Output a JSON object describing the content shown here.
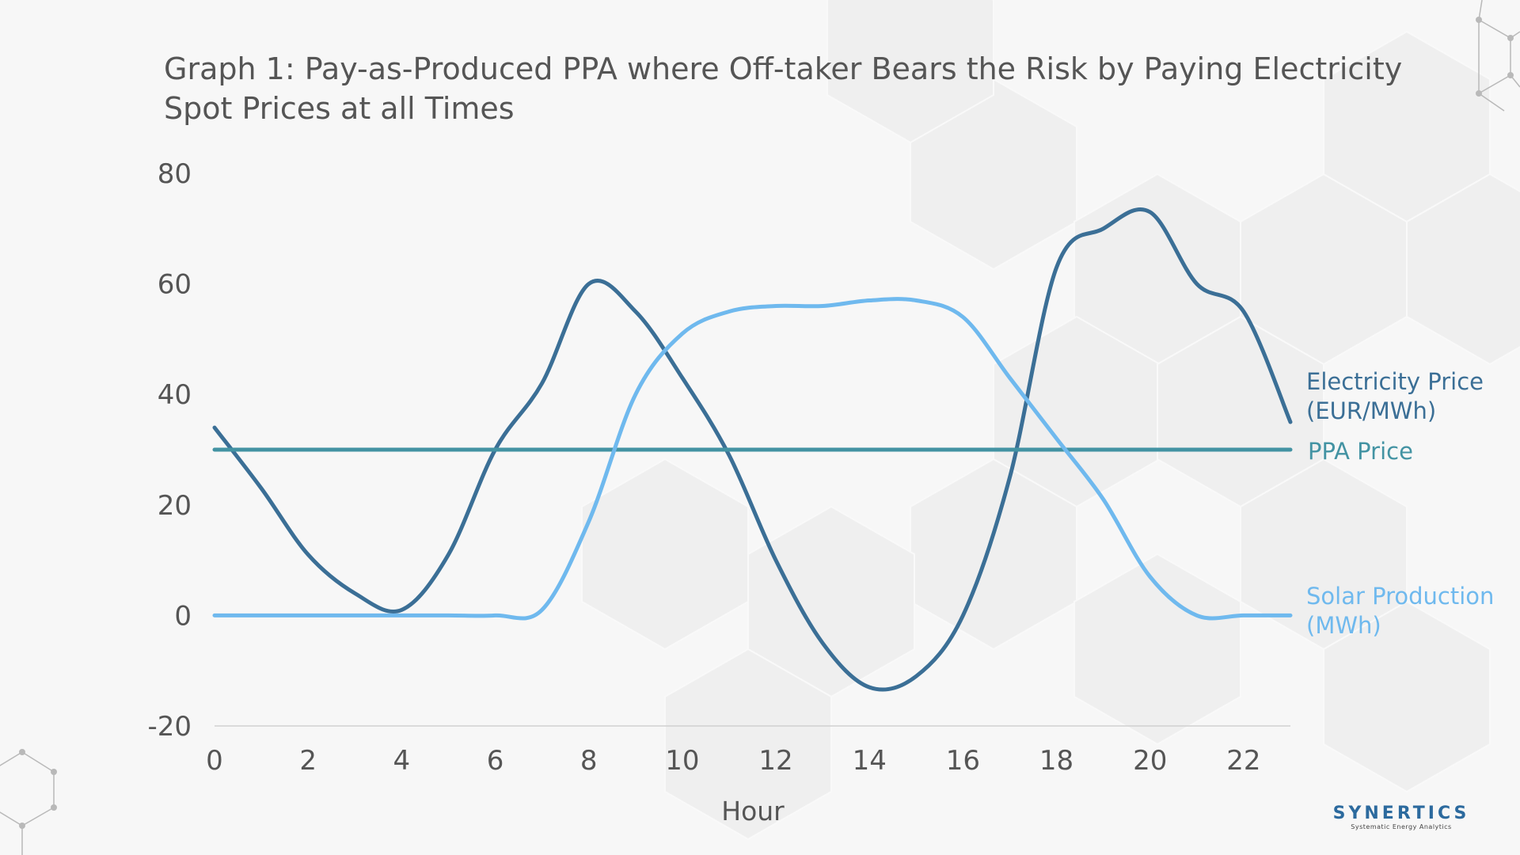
{
  "title": {
    "line1": "Graph 1: Pay-as-Produced PPA where Off-taker Bears the Risk by Paying Electricity",
    "line2": "Spot Prices at all Times"
  },
  "logo": {
    "name": "SYNERTICS",
    "tagline": "Systematic Energy Analytics"
  },
  "colors": {
    "electricity": "#3b6f96",
    "ppa": "#4393a3",
    "solar": "#6fb9ee",
    "axis_text": "#555555"
  },
  "chart_data": {
    "type": "line",
    "title": "Graph 1: Pay-as-Produced PPA where Off-taker Bears the Risk by Paying Electricity Spot Prices at all Times",
    "xlabel": "Hour",
    "ylabel": "",
    "xlim": [
      0,
      23
    ],
    "ylim": [
      -20,
      80
    ],
    "x_ticks": [
      "0",
      "2",
      "4",
      "6",
      "8",
      "10",
      "12",
      "14",
      "16",
      "18",
      "20",
      "22"
    ],
    "y_ticks": [
      "80",
      "60",
      "40",
      "20",
      "0",
      "-20"
    ],
    "grid": false,
    "legend": "right, inline labels",
    "x": [
      0,
      1,
      2,
      3,
      4,
      5,
      6,
      7,
      8,
      9,
      10,
      11,
      12,
      13,
      14,
      15,
      16,
      17,
      18,
      19,
      20,
      21,
      22,
      23
    ],
    "series": [
      {
        "name": "Electricity Price (EUR/MWh)",
        "label_lines": [
          "Electricity Price",
          "(EUR/MWh)"
        ],
        "values": [
          34,
          23,
          11,
          4,
          1,
          11,
          30,
          42,
          60,
          55,
          43,
          29,
          10,
          -5,
          -13,
          -11,
          0,
          25,
          63,
          70,
          73,
          60,
          55,
          35
        ]
      },
      {
        "name": "PPA Price",
        "label_lines": [
          "PPA Price"
        ],
        "values": [
          30,
          30,
          30,
          30,
          30,
          30,
          30,
          30,
          30,
          30,
          30,
          30,
          30,
          30,
          30,
          30,
          30,
          30,
          30,
          30,
          30,
          30,
          30,
          30
        ]
      },
      {
        "name": "Solar Production (MWh)",
        "label_lines": [
          "Solar Production",
          "(MWh)"
        ],
        "values": [
          0,
          0,
          0,
          0,
          0,
          0,
          0,
          1,
          17,
          40,
          51,
          55,
          56,
          56,
          57,
          57,
          54,
          43,
          32,
          21,
          7,
          0,
          0,
          0
        ]
      }
    ]
  }
}
